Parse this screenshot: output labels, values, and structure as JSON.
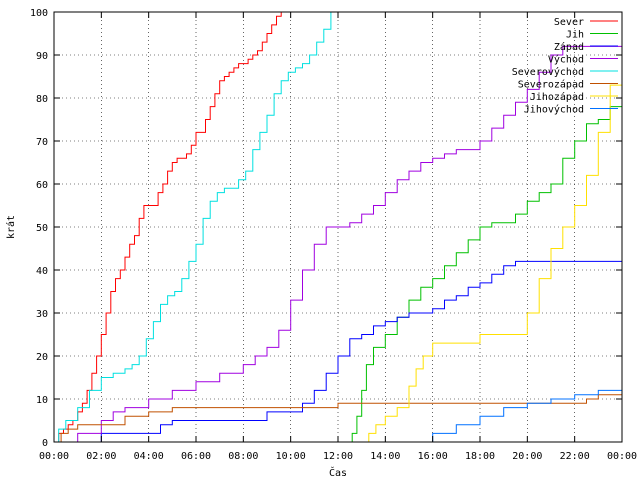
{
  "chart_data": {
    "type": "line",
    "xlabel": "Čas",
    "ylabel": "krát",
    "xlim": [
      0,
      24
    ],
    "ylim": [
      0,
      100
    ],
    "grid": true,
    "legend_position": "top-right",
    "x_ticks": [
      "00:00",
      "02:00",
      "04:00",
      "06:00",
      "08:00",
      "10:00",
      "12:00",
      "14:00",
      "16:00",
      "18:00",
      "20:00",
      "22:00",
      "00:00"
    ],
    "y_ticks": [
      "0",
      "10",
      "20",
      "30",
      "40",
      "50",
      "60",
      "70",
      "80",
      "90",
      "100"
    ],
    "series": [
      {
        "name": "Sever",
        "color": "#ff0000",
        "x": [
          0.0,
          0.2,
          0.4,
          0.6,
          0.8,
          1.0,
          1.2,
          1.4,
          1.6,
          1.8,
          2.0,
          2.2,
          2.4,
          2.6,
          2.8,
          3.0,
          3.2,
          3.4,
          3.6,
          3.8,
          4.0,
          4.2,
          4.4,
          4.6,
          4.8,
          5.0,
          5.2,
          5.4,
          5.6,
          5.8,
          6.0,
          6.2,
          6.4,
          6.6,
          6.8,
          7.0,
          7.2,
          7.4,
          7.6,
          7.8,
          8.0,
          8.2,
          8.4,
          8.6,
          8.8,
          9.0,
          9.2,
          9.4,
          9.6
        ],
        "y": [
          0,
          2,
          3,
          4,
          5,
          7,
          9,
          12,
          16,
          20,
          25,
          30,
          35,
          38,
          40,
          43,
          46,
          48,
          52,
          55,
          55,
          55,
          58,
          60,
          63,
          65,
          66,
          66,
          67,
          69,
          72,
          72,
          75,
          78,
          81,
          84,
          85,
          86,
          87,
          88,
          88,
          89,
          90,
          91,
          93,
          95,
          97,
          99,
          100
        ]
      },
      {
        "name": "Jih",
        "color": "#00c000",
        "x": [
          0.0,
          11.0,
          11.5,
          12.0,
          12.4,
          12.6,
          12.8,
          13.0,
          13.2,
          13.5,
          14.0,
          14.5,
          15.0,
          15.5,
          16.0,
          16.5,
          17.0,
          17.5,
          18.0,
          18.5,
          19.0,
          19.5,
          20.0,
          20.5,
          21.0,
          21.5,
          22.0,
          22.5,
          23.0,
          23.5,
          24.0
        ],
        "y": [
          0,
          0,
          0,
          0,
          0,
          2,
          6,
          12,
          18,
          22,
          25,
          29,
          33,
          36,
          38,
          41,
          44,
          47,
          50,
          51,
          51,
          53,
          56,
          58,
          60,
          66,
          70,
          74,
          75,
          78,
          84
        ]
      },
      {
        "name": "Západ",
        "color": "#0000ff",
        "x": [
          0.0,
          2.0,
          4.0,
          4.5,
          5.0,
          6.0,
          7.0,
          8.0,
          9.0,
          10.0,
          10.5,
          11.0,
          11.5,
          12.0,
          12.5,
          13.0,
          13.5,
          14.0,
          14.5,
          15.0,
          15.5,
          16.0,
          16.5,
          17.0,
          17.5,
          18.0,
          18.5,
          19.0,
          19.5,
          20.0,
          24.0
        ],
        "y": [
          0,
          2,
          2,
          4,
          5,
          5,
          5,
          5,
          7,
          7,
          9,
          12,
          16,
          20,
          24,
          25,
          27,
          28,
          29,
          30,
          30,
          31,
          33,
          34,
          36,
          37,
          39,
          41,
          42,
          42,
          42
        ]
      },
      {
        "name": "Východ",
        "color": "#a000e0",
        "x": [
          0.0,
          1.0,
          2.0,
          2.5,
          3.0,
          4.0,
          5.0,
          6.0,
          7.0,
          8.0,
          8.5,
          9.0,
          9.5,
          10.0,
          10.5,
          11.0,
          11.5,
          12.0,
          12.5,
          13.0,
          13.5,
          14.0,
          14.5,
          15.0,
          15.5,
          16.0,
          16.5,
          17.0,
          17.5,
          18.0,
          18.5,
          19.0,
          19.5,
          20.0,
          20.5,
          21.0,
          21.5,
          22.0,
          22.5,
          23.0,
          23.5,
          24.0
        ],
        "y": [
          0,
          2,
          5,
          7,
          8,
          10,
          12,
          14,
          16,
          18,
          20,
          22,
          26,
          33,
          40,
          46,
          50,
          50,
          51,
          53,
          55,
          58,
          61,
          63,
          65,
          66,
          67,
          68,
          68,
          70,
          73,
          76,
          79,
          82,
          86,
          90,
          92,
          92,
          92,
          92,
          92,
          92
        ]
      },
      {
        "name": "Severovýchod",
        "color": "#00e0e0",
        "x": [
          0.0,
          0.2,
          0.5,
          1.0,
          1.5,
          2.0,
          2.5,
          3.0,
          3.3,
          3.6,
          3.9,
          4.2,
          4.5,
          4.8,
          5.1,
          5.4,
          5.7,
          6.0,
          6.3,
          6.6,
          6.9,
          7.2,
          7.5,
          7.8,
          8.1,
          8.4,
          8.7,
          9.0,
          9.3,
          9.6,
          9.9,
          10.2,
          10.5,
          10.8,
          11.1,
          11.4,
          11.7
        ],
        "y": [
          0,
          3,
          5,
          8,
          12,
          15,
          16,
          17,
          18,
          20,
          24,
          28,
          32,
          34,
          35,
          38,
          42,
          46,
          52,
          56,
          58,
          59,
          59,
          61,
          63,
          68,
          72,
          76,
          81,
          84,
          86,
          87,
          88,
          90,
          93,
          96,
          100
        ]
      },
      {
        "name": "Severozápad",
        "color": "#c05000",
        "x": [
          0.0,
          0.3,
          0.6,
          1.0,
          2.0,
          3.0,
          4.0,
          5.0,
          6.0,
          7.0,
          8.0,
          9.0,
          10.0,
          11.0,
          12.0,
          13.0,
          14.0,
          15.0,
          16.0,
          17.0,
          18.0,
          19.0,
          20.0,
          21.0,
          22.0,
          22.5,
          23.0,
          24.0
        ],
        "y": [
          0,
          2,
          3,
          4,
          4,
          6,
          7,
          8,
          8,
          8,
          8,
          8,
          8,
          8,
          9,
          9,
          9,
          9,
          9,
          9,
          9,
          9,
          9,
          9,
          9,
          10,
          11,
          11
        ]
      },
      {
        "name": "Jihozápad",
        "color": "#ffe000",
        "x": [
          0.0,
          13.0,
          13.3,
          13.6,
          14.0,
          14.5,
          15.0,
          15.3,
          15.6,
          16.0,
          16.5,
          17.0,
          17.5,
          18.0,
          18.5,
          19.0,
          19.5,
          20.0,
          20.5,
          21.0,
          21.5,
          22.0,
          22.5,
          23.0,
          23.5,
          24.0
        ],
        "y": [
          0,
          0,
          2,
          4,
          6,
          8,
          13,
          17,
          20,
          23,
          23,
          23,
          23,
          25,
          25,
          25,
          25,
          30,
          38,
          45,
          50,
          55,
          62,
          72,
          83,
          100
        ]
      },
      {
        "name": "Jihovýchod",
        "color": "#0070ff",
        "x": [
          0.0,
          15.0,
          16.0,
          17.0,
          18.0,
          19.0,
          20.0,
          21.0,
          22.0,
          23.0,
          24.0
        ],
        "y": [
          0,
          0,
          2,
          4,
          6,
          8,
          9,
          10,
          11,
          12,
          15
        ]
      }
    ]
  }
}
